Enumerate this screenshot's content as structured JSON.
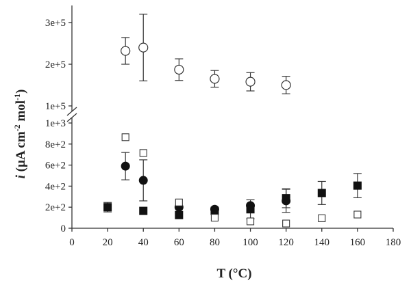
{
  "chart_data": {
    "type": "scatter",
    "title": "",
    "xlabel": "T (°C)",
    "ylabel": {
      "italic": "i",
      "main": " (µA cm",
      "sup1": "-2",
      "mid": " mol",
      "sup2": "-1",
      "end": ")"
    },
    "x_ticks": [
      "0",
      "20",
      "40",
      "60",
      "80",
      "100",
      "120",
      "140",
      "160",
      "180"
    ],
    "xlim": [
      0,
      180
    ],
    "broken_y_axis": true,
    "y_upper": {
      "range": [
        100000,
        350000
      ],
      "ticks": [
        100000,
        200000,
        300000
      ],
      "tick_labels": [
        "1e+5",
        "2e+5",
        "3e+5"
      ]
    },
    "y_lower": {
      "range": [
        0,
        1000
      ],
      "ticks": [
        0,
        200,
        400,
        600,
        800,
        1000
      ],
      "tick_labels": [
        "0",
        "2e+2",
        "4e+2",
        "6e+2",
        "8e+2",
        "1e+3"
      ]
    },
    "series": [
      {
        "marker": "open-circle",
        "panel": "upper",
        "points": [
          {
            "x": 30,
            "y": 232000,
            "err": 32000
          },
          {
            "x": 40,
            "y": 240000,
            "err": 80000
          },
          {
            "x": 60,
            "y": 187000,
            "err": 26000
          },
          {
            "x": 80,
            "y": 165000,
            "err": 20000
          },
          {
            "x": 100,
            "y": 158000,
            "err": 22000
          },
          {
            "x": 120,
            "y": 150000,
            "err": 21000
          }
        ]
      },
      {
        "marker": "filled-circle",
        "panel": "lower",
        "points": [
          {
            "x": 30,
            "y": 590,
            "err": 130
          },
          {
            "x": 40,
            "y": 455,
            "err": 195
          },
          {
            "x": 60,
            "y": 200,
            "err": 0
          },
          {
            "x": 80,
            "y": 180,
            "err": 0
          },
          {
            "x": 100,
            "y": 215,
            "err": 0
          },
          {
            "x": 120,
            "y": 260,
            "err": 110
          }
        ]
      },
      {
        "marker": "filled-square",
        "panel": "lower",
        "points": [
          {
            "x": 20,
            "y": 200,
            "err": 45
          },
          {
            "x": 40,
            "y": 165,
            "err": 0
          },
          {
            "x": 60,
            "y": 125,
            "err": 0
          },
          {
            "x": 80,
            "y": 165,
            "err": 0
          },
          {
            "x": 100,
            "y": 180,
            "err": 90
          },
          {
            "x": 120,
            "y": 285,
            "err": 90
          },
          {
            "x": 140,
            "y": 335,
            "err": 110
          },
          {
            "x": 160,
            "y": 405,
            "err": 115
          }
        ]
      },
      {
        "marker": "open-square",
        "panel": "lower",
        "points": [
          {
            "x": 30,
            "y": 865,
            "err": 0
          },
          {
            "x": 40,
            "y": 715,
            "err": 0
          },
          {
            "x": 60,
            "y": 245,
            "err": 0
          },
          {
            "x": 80,
            "y": 100,
            "err": 0
          },
          {
            "x": 100,
            "y": 65,
            "err": 0
          },
          {
            "x": 120,
            "y": 45,
            "err": 0
          },
          {
            "x": 140,
            "y": 95,
            "err": 0
          },
          {
            "x": 160,
            "y": 130,
            "err": 0
          }
        ]
      }
    ],
    "grid": false,
    "legend": "none"
  }
}
